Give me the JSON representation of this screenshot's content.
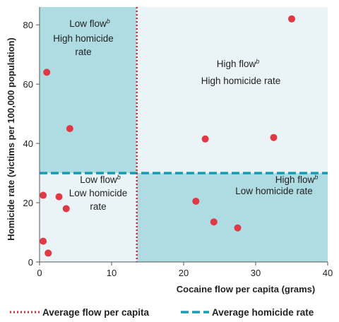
{
  "chart_data": {
    "type": "scatter",
    "xlabel": "Cocaine flow per capita (grams)",
    "ylabel": "Homicide rate (victims per 100,000 population)",
    "xlim": [
      0,
      40
    ],
    "ylim": [
      0,
      86
    ],
    "x_ticks": [
      0,
      10,
      20,
      30,
      40
    ],
    "y_ticks": [
      0,
      20,
      40,
      60,
      80
    ],
    "grid": false,
    "legend_position": "bottom",
    "average_flow": 13.5,
    "average_homicide_rate": 30,
    "points": [
      {
        "x": 1.0,
        "y": 64
      },
      {
        "x": 4.2,
        "y": 45
      },
      {
        "x": 0.5,
        "y": 22.5
      },
      {
        "x": 2.7,
        "y": 22
      },
      {
        "x": 3.7,
        "y": 18
      },
      {
        "x": 0.5,
        "y": 7
      },
      {
        "x": 1.2,
        "y": 3
      },
      {
        "x": 35.0,
        "y": 82
      },
      {
        "x": 23.0,
        "y": 41.5
      },
      {
        "x": 32.5,
        "y": 42
      },
      {
        "x": 21.7,
        "y": 20.5
      },
      {
        "x": 24.2,
        "y": 13.5
      },
      {
        "x": 27.5,
        "y": 11.5
      }
    ],
    "quadrant_labels": {
      "top_left": {
        "line1": "Low flow",
        "line1_sup": "b",
        "line2": "High homicide",
        "line3": "rate"
      },
      "top_right": {
        "line1": "High flow",
        "line1_sup": "b",
        "line2": "High homicide rate"
      },
      "bottom_left": {
        "line1": "Low flow",
        "line1_sup": "b",
        "line2": "Low homicide",
        "line3": "rate"
      },
      "bottom_right": {
        "line1": "High flow",
        "line1_sup": "b",
        "line2": "Low homicide rate"
      }
    },
    "legend": {
      "flow_label": "Average flow per capita",
      "homicide_label": "Average homicide rate"
    },
    "colors": {
      "dark_quadrant": "#afdbe3",
      "light_quadrant": "#eaf4f6",
      "point": "#e03845",
      "flow_line": "#d42a3a",
      "homicide_line": "#1a9bb5",
      "axis": "#555555",
      "text": "#222222"
    }
  }
}
